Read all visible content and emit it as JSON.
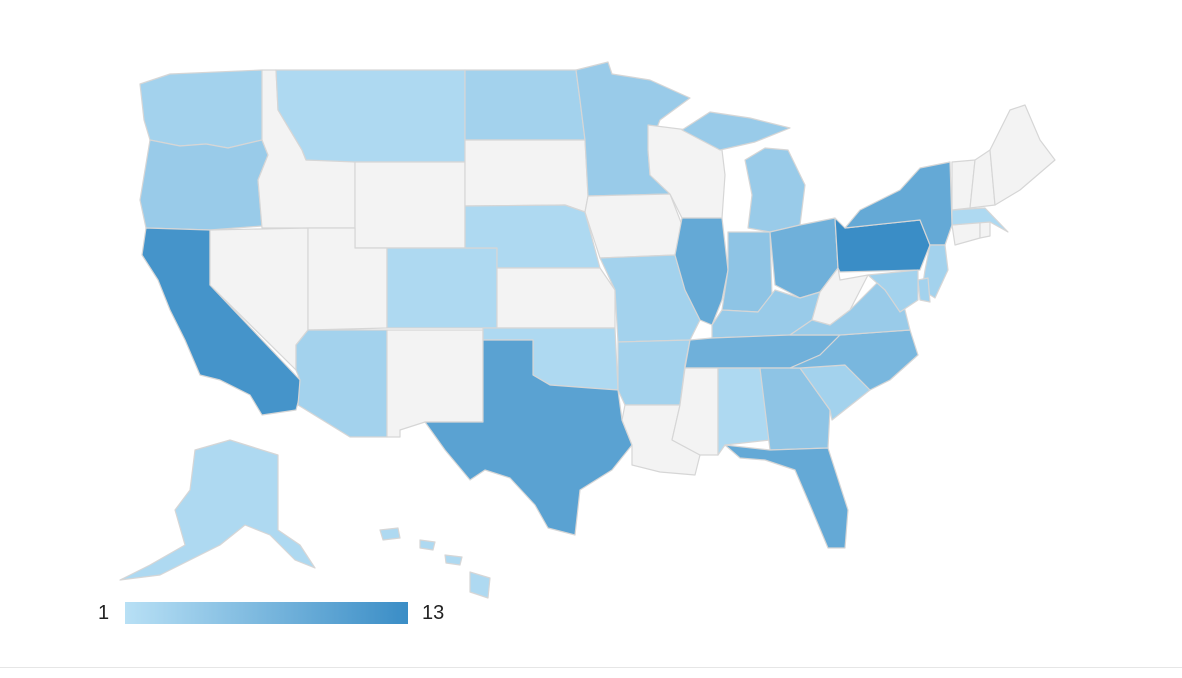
{
  "legend": {
    "min_label": "1",
    "max_label": "13",
    "min": 1,
    "max": 13,
    "color_low": "#b8e0f5",
    "color_high": "#3a8dc6",
    "color_none": "#f3f3f3"
  },
  "states": {
    "WA": 3,
    "OR": 4,
    "CA": 12,
    "AK": 2,
    "HI": 2,
    "MT": 2,
    "ND": 3,
    "MN": 4,
    "SD": null,
    "WY": null,
    "ID": null,
    "NV": null,
    "UT": null,
    "CO": 2,
    "AZ": 3,
    "NM": null,
    "NE": 2,
    "KS": null,
    "OK": 2,
    "TX": 10,
    "IA": null,
    "MO": 3,
    "AR": 3,
    "LA": null,
    "WI": null,
    "IL": 9,
    "MI": 4,
    "IN": 5,
    "OH": 8,
    "KY": 4,
    "TN": 8,
    "MS": null,
    "AL": 2,
    "GA": 5,
    "FL": 9,
    "SC": 3,
    "NC": 7,
    "VA": 4,
    "WV": null,
    "PA": 13,
    "NY": 9,
    "VT": null,
    "NH": null,
    "ME": null,
    "MA": 2,
    "CT": null,
    "RI": null,
    "NJ": 3,
    "DE": 3,
    "MD": 3
  }
}
